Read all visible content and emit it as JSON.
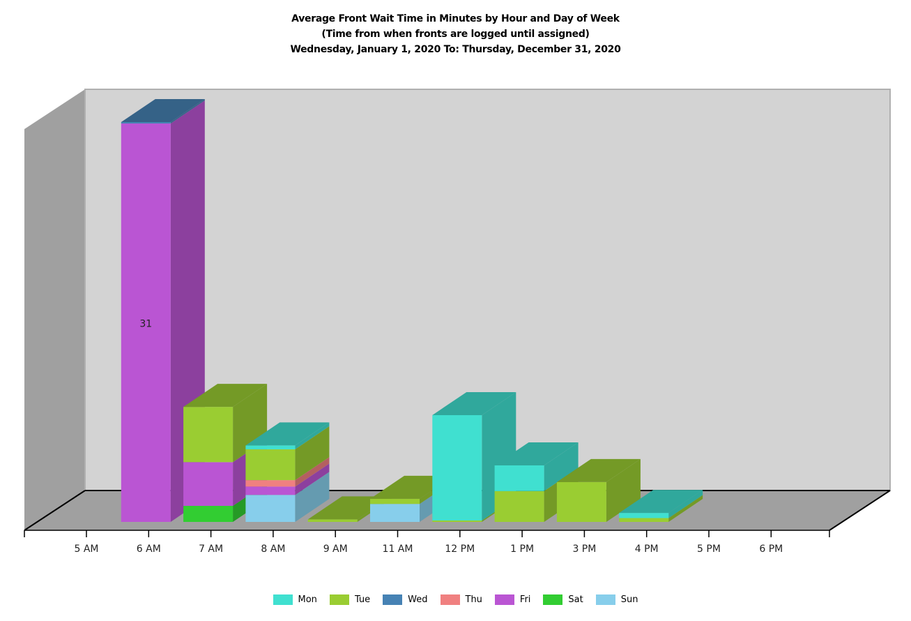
{
  "title": {
    "line1": "Average Front Wait Time in Minutes by Hour and Day of Week",
    "line2": "(Time from when fronts are logged until assigned)",
    "line3": "Wednesday, January 1, 2020 To: Thursday, December 31, 2020"
  },
  "colors": {
    "Mon": "#40E0D0",
    "Tue": "#9ACD32",
    "Wed": "#4682B4",
    "Thu": "#F08080",
    "Fri": "#BA55D3",
    "Sat": "#32CD32",
    "Sun": "#87CEEB",
    "back_wall": "#D3D3D3",
    "side_wall": "#A0A0A0",
    "floor": "#A0A0A0"
  },
  "legend": [
    {
      "label": "Mon",
      "color": "#40E0D0"
    },
    {
      "label": "Tue",
      "color": "#9ACD32"
    },
    {
      "label": "Wed",
      "color": "#4682B4"
    },
    {
      "label": "Thu",
      "color": "#F08080"
    },
    {
      "label": "Fri",
      "color": "#BA55D3"
    },
    {
      "label": "Sat",
      "color": "#32CD32"
    },
    {
      "label": "Sun",
      "color": "#87CEEB"
    }
  ],
  "chart_data": {
    "type": "bar",
    "subtype": "stacked-3d",
    "title": "Average Front Wait Time in Minutes by Hour and Day of Week",
    "subtitle": "(Time from when fronts are logged until assigned) Wednesday, January 1, 2020 To: Thursday, December 31, 2020",
    "xlabel": "",
    "ylabel": "",
    "categories": [
      "5 AM",
      "6 AM",
      "7 AM",
      "8 AM",
      "9 AM",
      "11 AM",
      "12 PM",
      "1 PM",
      "3 PM",
      "4 PM",
      "5 PM",
      "6 PM"
    ],
    "stack_order": [
      "Sun",
      "Sat",
      "Fri",
      "Thu",
      "Wed",
      "Tue",
      "Mon"
    ],
    "series": [
      {
        "name": "Mon",
        "values": [
          0,
          0,
          0,
          0.3,
          0,
          0,
          8.2,
          2.0,
          0,
          0.4,
          0,
          0
        ]
      },
      {
        "name": "Tue",
        "values": [
          0,
          0,
          4.3,
          2.4,
          0.2,
          0.4,
          0.1,
          2.4,
          3.1,
          0.3,
          0,
          0
        ]
      },
      {
        "name": "Wed",
        "values": [
          0,
          0.1,
          0,
          0,
          0,
          0,
          0,
          0,
          0,
          0,
          0,
          0
        ]
      },
      {
        "name": "Thu",
        "values": [
          0,
          0,
          0,
          0.5,
          0,
          0,
          0,
          0,
          0,
          0,
          0,
          0
        ]
      },
      {
        "name": "Fri",
        "values": [
          0,
          31,
          3.4,
          0.65,
          0,
          0,
          0,
          0,
          0,
          0,
          0,
          0
        ]
      },
      {
        "name": "Sat",
        "values": [
          0,
          0,
          1.25,
          0,
          0,
          0,
          0,
          0,
          0,
          0,
          0,
          0
        ]
      },
      {
        "name": "Sun",
        "values": [
          0,
          0,
          0,
          2.1,
          0,
          1.4,
          0,
          0,
          0,
          0,
          0,
          0
        ]
      }
    ],
    "data_labels": [
      {
        "category": "6 AM",
        "series": "Fri",
        "text": "31"
      }
    ],
    "grid": false,
    "legend_position": "bottom",
    "ylim": [
      0,
      32
    ]
  }
}
